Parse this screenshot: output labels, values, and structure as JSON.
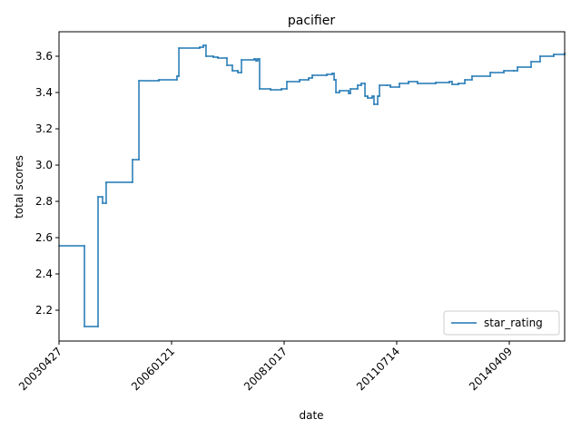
{
  "chart_data": {
    "type": "line",
    "drawstyle": "steps-post",
    "title": "pacifier",
    "xlabel": "date",
    "ylabel": "total scores",
    "x": [
      0,
      226,
      347,
      387,
      419,
      653,
      710,
      887,
      1048,
      1065,
      1250,
      1282,
      1306,
      1371,
      1411,
      1492,
      1540,
      1589,
      1621,
      1734,
      1750,
      1766,
      1782,
      1879,
      1976,
      2024,
      2137,
      2218,
      2250,
      2379,
      2427,
      2444,
      2460,
      2492,
      2573,
      2589,
      2653,
      2685,
      2718,
      2742,
      2782,
      2798,
      2831,
      2847,
      2911,
      2944,
      3024,
      3105,
      3185,
      3347,
      3468,
      3492,
      3548,
      3605,
      3669,
      3831,
      3952,
      4040,
      4073,
      4194,
      4274,
      4395,
      4492
    ],
    "series": [
      {
        "name": "star_rating",
        "color": "#1f77b4",
        "values": [
          2.555,
          2.11,
          2.825,
          2.79,
          2.905,
          3.03,
          3.465,
          3.47,
          3.49,
          3.645,
          3.65,
          3.66,
          3.6,
          3.595,
          3.59,
          3.55,
          3.52,
          3.51,
          3.58,
          3.585,
          3.575,
          3.585,
          3.42,
          3.415,
          3.42,
          3.46,
          3.47,
          3.48,
          3.495,
          3.5,
          3.505,
          3.47,
          3.4,
          3.41,
          3.395,
          3.42,
          3.44,
          3.45,
          3.38,
          3.37,
          3.38,
          3.335,
          3.38,
          3.44,
          3.44,
          3.43,
          3.45,
          3.46,
          3.45,
          3.455,
          3.46,
          3.445,
          3.45,
          3.47,
          3.49,
          3.51,
          3.52,
          3.52,
          3.54,
          3.57,
          3.6,
          3.61,
          3.615
        ]
      }
    ],
    "xlim": [
      0,
      4492
    ],
    "xticks": [
      {
        "value": 0,
        "label": "20030427"
      },
      {
        "value": 1000,
        "label": "20060121"
      },
      {
        "value": 2000,
        "label": "20081017"
      },
      {
        "value": 3000,
        "label": "20110714"
      },
      {
        "value": 4000,
        "label": "20140409"
      }
    ],
    "ylim": [
      2.03,
      3.735
    ],
    "yticks": [
      2.2,
      2.4,
      2.6,
      2.8,
      {
        "value": 3,
        "label": "3.0"
      },
      3.2,
      3.4,
      3.6
    ],
    "grid": false,
    "legend": "lower right"
  }
}
